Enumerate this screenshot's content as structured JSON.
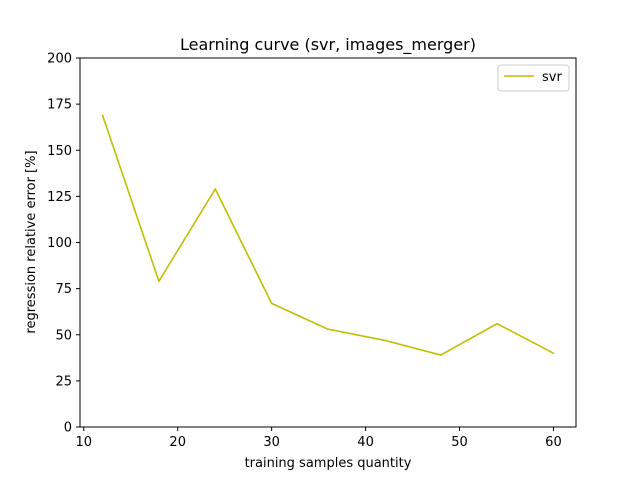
{
  "chart_data": {
    "type": "line",
    "title": "Learning curve (svr, images_merger)",
    "xlabel": "training samples quantity",
    "ylabel": "regression relative error [%]",
    "xlim": [
      9.6,
      62.4
    ],
    "ylim": [
      0,
      200
    ],
    "xticks": [
      10,
      20,
      30,
      40,
      50,
      60
    ],
    "yticks": [
      0,
      25,
      50,
      75,
      100,
      125,
      150,
      175,
      200
    ],
    "grid": false,
    "legend_position": "top-right",
    "series": [
      {
        "name": "svr",
        "color": "#bfbf00",
        "x": [
          12,
          18,
          24,
          30,
          36,
          42,
          48,
          54,
          60
        ],
        "y": [
          169,
          79,
          129,
          67,
          53,
          47,
          39,
          56,
          40
        ]
      }
    ]
  }
}
